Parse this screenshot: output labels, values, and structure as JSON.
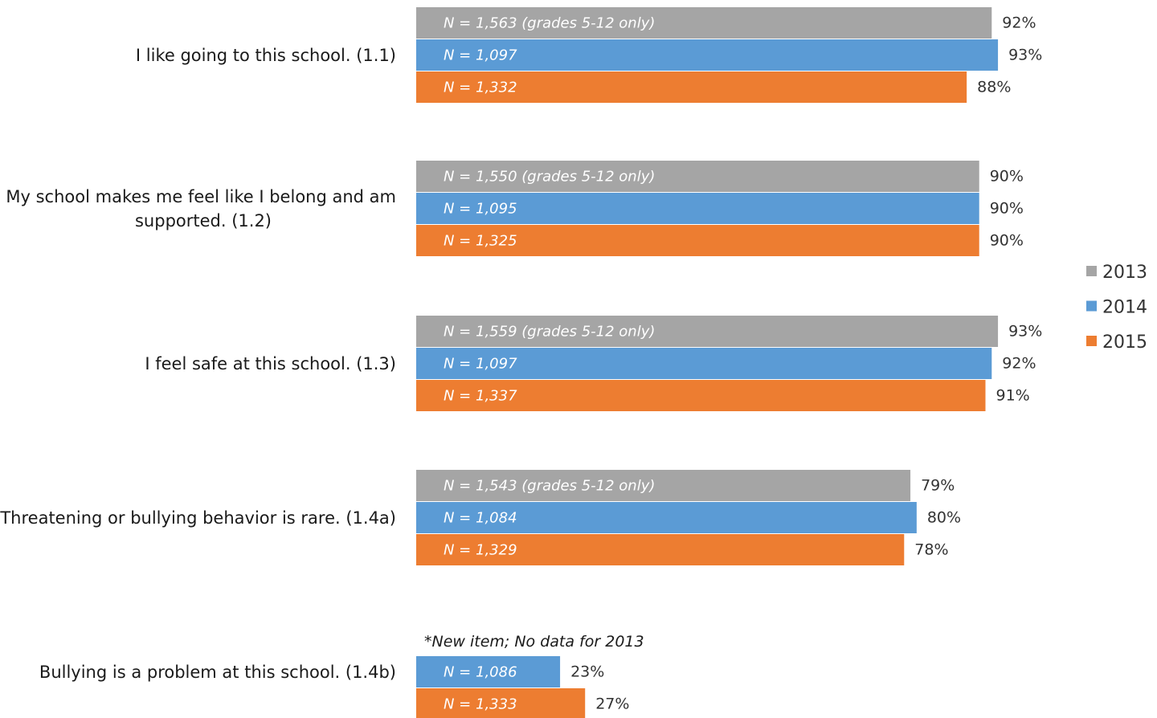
{
  "chart_data": {
    "type": "bar",
    "orientation": "horizontal",
    "grid": false,
    "legend_position": "right",
    "categories": [
      [
        "I like going to this school. (1.1)"
      ],
      [
        "My school makes me feel like I belong and am",
        "supported. (1.2)"
      ],
      [
        "I feel safe at this school. (1.3)"
      ],
      [
        "Threatening or bullying behavior is rare. (1.4a)"
      ],
      [
        "Bullying is a problem at this school. (1.4b)"
      ]
    ],
    "xlim": [
      0,
      100
    ],
    "series": [
      {
        "name": "2013",
        "color": "#a5a5a5",
        "values": [
          92,
          90,
          93,
          79,
          null
        ],
        "value_labels": [
          "92%",
          "90%",
          "93%",
          "79%",
          null
        ],
        "bar_labels": [
          "N = 1,563 (grades 5-12 only)",
          "N = 1,550 (grades 5-12 only)",
          "N = 1,559 (grades 5-12 only)",
          "N = 1,543 (grades 5-12 only)",
          null
        ]
      },
      {
        "name": "2014",
        "color": "#5b9bd5",
        "values": [
          93,
          90,
          92,
          80,
          23
        ],
        "value_labels": [
          "93%",
          "90%",
          "92%",
          "80%",
          "23%"
        ],
        "bar_labels": [
          "N = 1,097",
          "N = 1,095",
          "N = 1,097",
          "N = 1,084",
          "N = 1,086"
        ]
      },
      {
        "name": "2015",
        "color": "#ed7d31",
        "values": [
          88,
          90,
          91,
          78,
          27
        ],
        "value_labels": [
          "88%",
          "90%",
          "91%",
          "78%",
          "27%"
        ],
        "bar_labels": [
          "N = 1,332",
          "N = 1,325",
          "N = 1,337",
          "N = 1,329",
          "N = 1,333"
        ]
      }
    ],
    "annotations": [
      {
        "category_index": 4,
        "text": "*New item; No data for 2013"
      }
    ],
    "legend": [
      "2013",
      "2014",
      "2015"
    ]
  }
}
